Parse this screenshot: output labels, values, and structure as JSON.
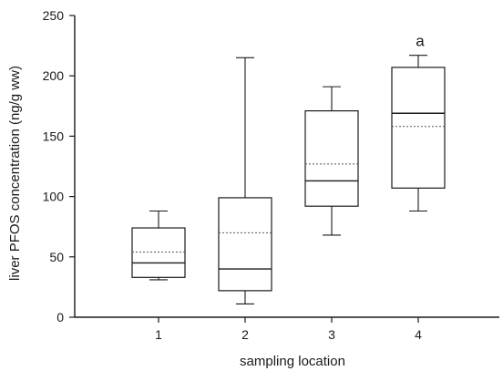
{
  "chart_data": {
    "type": "box",
    "xlabel": "sampling location",
    "ylabel": "liver PFOS concentration (ng/g ww)",
    "ylim": [
      0,
      250
    ],
    "yticks": [
      0,
      50,
      100,
      150,
      200,
      250
    ],
    "categories": [
      "1",
      "2",
      "3",
      "4"
    ],
    "boxes": [
      {
        "category": "1",
        "min": 31,
        "q1": 33,
        "median": 45,
        "mean": 54,
        "q3": 74,
        "max": 88
      },
      {
        "category": "2",
        "min": 11,
        "q1": 22,
        "median": 40,
        "mean": 70,
        "q3": 99,
        "max": 215
      },
      {
        "category": "3",
        "min": 68,
        "q1": 92,
        "median": 113,
        "mean": 127,
        "q3": 171,
        "max": 191
      },
      {
        "category": "4",
        "min": 88,
        "q1": 107,
        "median": 169,
        "mean": 158,
        "q3": 207,
        "max": 217
      }
    ],
    "annotations": [
      {
        "category": "4",
        "text": "a"
      }
    ],
    "mean_style": "dotted",
    "median_style": "solid",
    "grid": false,
    "legend": "none"
  }
}
